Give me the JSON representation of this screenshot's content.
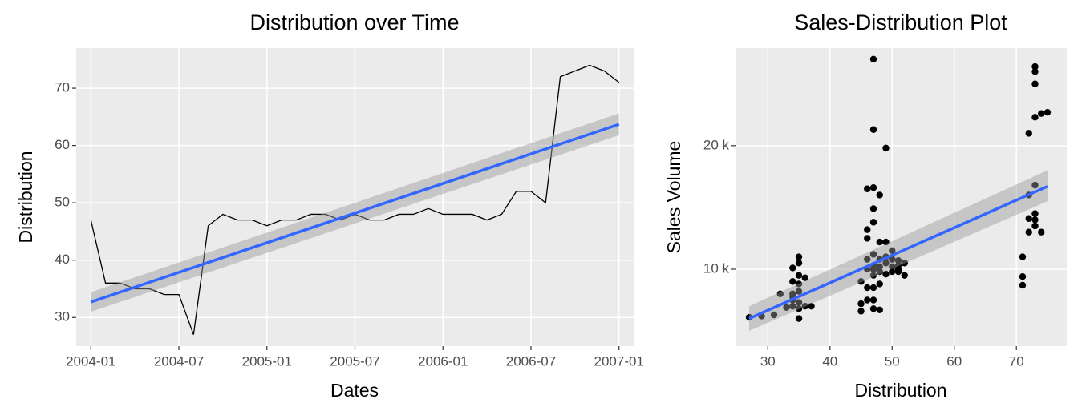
{
  "chart_data": [
    {
      "type": "line",
      "title": "Distribution over Time",
      "x_label": "Dates",
      "y_label": "Distribution",
      "x": [
        "2004-01",
        "2004-02",
        "2004-03",
        "2004-04",
        "2004-05",
        "2004-06",
        "2004-07",
        "2004-08",
        "2004-09",
        "2004-10",
        "2004-11",
        "2004-12",
        "2005-01",
        "2005-02",
        "2005-03",
        "2005-04",
        "2005-05",
        "2005-06",
        "2005-07",
        "2005-08",
        "2005-09",
        "2005-10",
        "2005-11",
        "2005-12",
        "2006-01",
        "2006-02",
        "2006-03",
        "2006-04",
        "2006-05",
        "2006-06",
        "2006-07",
        "2006-08",
        "2006-09",
        "2006-10",
        "2006-11",
        "2006-12",
        "2007-01"
      ],
      "values": [
        47,
        36,
        36,
        35,
        35,
        34,
        34,
        27,
        46,
        48,
        47,
        47,
        46,
        47,
        47,
        48,
        48,
        47,
        48,
        47,
        47,
        48,
        48,
        49,
        48,
        48,
        48,
        47,
        48,
        52,
        52,
        50,
        72,
        73,
        74,
        73,
        71
      ],
      "color": "#000000",
      "fit": {
        "x": [
          "2004-01",
          "2007-01"
        ],
        "values": [
          32.7,
          63.7
        ],
        "lower": [
          31.0,
          61.8
        ],
        "upper": [
          34.4,
          65.6
        ],
        "color": "#3366ff"
      },
      "xlim": [
        "2003-12",
        "2007-02"
      ],
      "xticks": [
        "2004-01",
        "2004-07",
        "2005-01",
        "2005-07",
        "2006-01",
        "2006-07",
        "2007-01"
      ],
      "ylim": [
        25,
        77
      ],
      "yticks": [
        30,
        40,
        50,
        60,
        70
      ],
      "grid": true
    },
    {
      "type": "scatter",
      "title": "Sales-Distribution Plot",
      "x_label": "Distribution",
      "y_label": "Sales Volume",
      "x": [
        27,
        29,
        31,
        32,
        33,
        34,
        34,
        34,
        34,
        34,
        35,
        35,
        35,
        35,
        35,
        35,
        35,
        36,
        36,
        37,
        34,
        35,
        45,
        45,
        45,
        46,
        46,
        46,
        46,
        46,
        46,
        47,
        47,
        47,
        47,
        47,
        47,
        47,
        47,
        47,
        47,
        47,
        48,
        48,
        48,
        48,
        48,
        48,
        49,
        49,
        49,
        49,
        50,
        50,
        50,
        51,
        51,
        51,
        52,
        52,
        46,
        47,
        48,
        49,
        50,
        51,
        71,
        71,
        71,
        72,
        72,
        72,
        72,
        73,
        73,
        73,
        73,
        73,
        73,
        73,
        73,
        74,
        74,
        75
      ],
      "values": [
        6100,
        6200,
        6300,
        8000,
        6900,
        7000,
        7500,
        8000,
        9000,
        10100,
        10500,
        11000,
        6000,
        6800,
        7300,
        8200,
        9500,
        9300,
        7000,
        7000,
        7800,
        8800,
        6600,
        7200,
        9000,
        16500,
        13200,
        12500,
        10000,
        8500,
        7500,
        27000,
        21300,
        16600,
        14900,
        13800,
        11200,
        10000,
        9500,
        8500,
        7500,
        6800,
        16000,
        12200,
        10800,
        9800,
        8800,
        6700,
        19800,
        12200,
        10500,
        9600,
        11500,
        10200,
        9800,
        10700,
        10000,
        9800,
        10500,
        9500,
        10800,
        10300,
        10200,
        11000,
        10800,
        10300,
        11000,
        9400,
        8700,
        21000,
        16000,
        14100,
        13000,
        26400,
        26000,
        25000,
        22300,
        16800,
        14500,
        14000,
        13500,
        22600,
        13000,
        22700
      ],
      "color": "#000000",
      "fit": {
        "x": [
          27,
          75
        ],
        "values": [
          6000,
          16700
        ],
        "lower": [
          5000,
          15500
        ],
        "upper": [
          7000,
          18000
        ],
        "color": "#3366ff"
      },
      "xlim": [
        24.8,
        78.1
      ],
      "xticks": [
        30,
        40,
        50,
        60,
        70
      ],
      "ylim": [
        3770,
        27900
      ],
      "yticks": [
        {
          "value": 10000,
          "label": "10 k"
        },
        {
          "value": 20000,
          "label": "20 k"
        }
      ],
      "grid": true
    }
  ]
}
